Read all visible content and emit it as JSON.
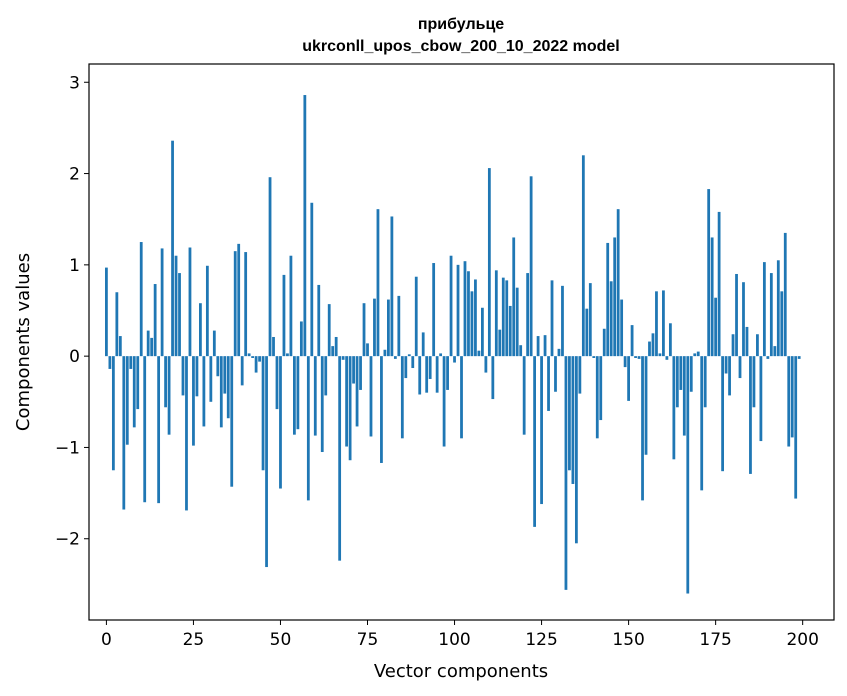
{
  "chart_data": {
    "type": "bar",
    "title": "прибульце",
    "subtitle": "ukrconll_upos_cbow_200_10_2022 model",
    "xlabel": "Vector components",
    "ylabel": "Components values",
    "xlim": [
      -5,
      209
    ],
    "ylim": [
      -2.89,
      3.2
    ],
    "xticks": [
      0,
      25,
      50,
      75,
      100,
      125,
      150,
      175,
      200
    ],
    "yticks": [
      -2,
      -1,
      0,
      1,
      2,
      3
    ],
    "bar_color": "#1f77b4",
    "grid": false,
    "values": [
      0.97,
      -0.14,
      -1.25,
      0.7,
      0.22,
      -1.68,
      -0.97,
      -0.14,
      -0.78,
      -0.58,
      1.25,
      -1.6,
      0.28,
      0.2,
      0.79,
      -1.61,
      1.18,
      -0.56,
      -0.86,
      2.36,
      1.1,
      0.91,
      -0.43,
      -1.69,
      1.19,
      -0.98,
      -0.44,
      0.58,
      -0.77,
      0.99,
      -0.5,
      0.28,
      -0.22,
      -0.78,
      -0.41,
      -0.68,
      -1.43,
      1.15,
      1.23,
      -0.32,
      1.14,
      0.03,
      -0.02,
      -0.18,
      -0.06,
      -1.25,
      -2.31,
      1.96,
      0.21,
      -0.58,
      -1.45,
      0.89,
      0.03,
      1.1,
      -0.86,
      -0.8,
      0.38,
      2.86,
      -1.58,
      1.68,
      -0.87,
      0.78,
      -1.05,
      -0.43,
      0.57,
      0.11,
      0.21,
      -2.24,
      -0.04,
      -0.99,
      -1.14,
      -0.3,
      -0.77,
      -0.37,
      0.58,
      0.14,
      -0.88,
      0.63,
      1.61,
      -1.17,
      0.07,
      0.62,
      1.53,
      -0.03,
      0.66,
      -0.9,
      -0.24,
      0.02,
      -0.13,
      0.87,
      -0.42,
      0.26,
      -0.4,
      -0.25,
      1.02,
      -0.4,
      0.03,
      -0.99,
      -0.37,
      1.1,
      -0.07,
      1.0,
      -0.9,
      1.04,
      0.93,
      0.71,
      0.84,
      0.06,
      0.53,
      -0.18,
      2.06,
      -0.47,
      0.94,
      0.29,
      0.86,
      0.83,
      0.55,
      1.3,
      0.75,
      0.12,
      -0.86,
      0.91,
      1.97,
      -1.87,
      0.22,
      -1.62,
      0.23,
      -0.6,
      0.83,
      -0.39,
      0.08,
      0.77,
      -2.56,
      -1.25,
      -1.4,
      -2.05,
      -0.41,
      2.2,
      0.52,
      0.8,
      -0.02,
      -0.9,
      -0.7,
      0.3,
      1.24,
      0.82,
      1.3,
      1.61,
      0.62,
      -0.12,
      -0.49,
      0.34,
      -0.02,
      -0.03,
      -1.58,
      -1.08,
      0.16,
      0.25,
      0.71,
      0.03,
      0.72,
      -0.04,
      0.36,
      -1.13,
      -0.56,
      -0.37,
      -0.87,
      -2.6,
      -0.39,
      0.03,
      0.05,
      -1.47,
      -0.56,
      1.83,
      1.3,
      0.64,
      1.58,
      -1.26,
      -0.19,
      -0.43,
      0.24,
      0.9,
      -0.24,
      0.81,
      0.32,
      -1.29,
      -0.56,
      0.24,
      -0.93,
      1.03,
      -0.03,
      0.91,
      0.11,
      1.05,
      0.71,
      1.35,
      -0.99,
      -0.89,
      -1.56,
      -0.03
    ]
  }
}
